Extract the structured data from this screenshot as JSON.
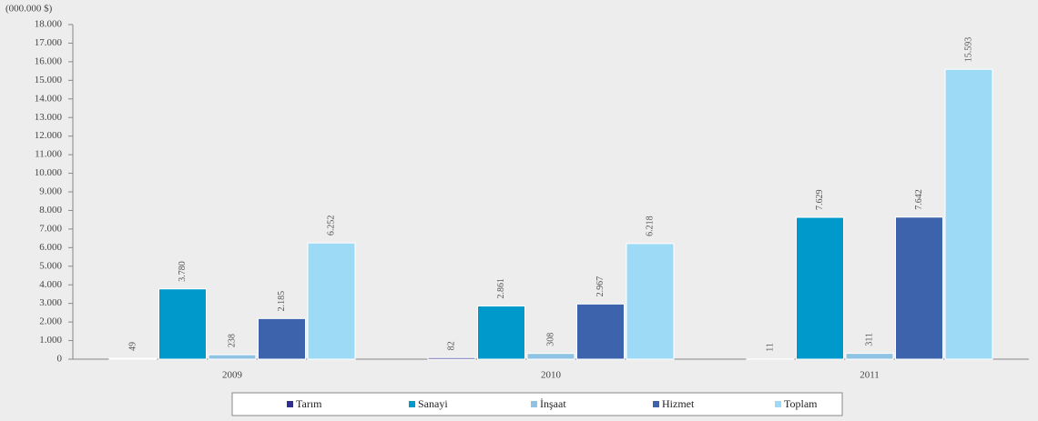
{
  "chart_data": {
    "type": "bar",
    "y_label": "(000.000 $)",
    "categories": [
      "2009",
      "2010",
      "2011"
    ],
    "series": [
      {
        "name": "Tarım",
        "color": "#2e3192",
        "values": [
          49,
          82,
          11
        ]
      },
      {
        "name": "Sanayi",
        "color": "#0099cc",
        "values": [
          3780,
          2861,
          7629
        ],
        "value_labels": [
          "3.780",
          "2.861",
          "7.629"
        ]
      },
      {
        "name": "İnşaat",
        "color": "#8fc3e3",
        "values": [
          238,
          308,
          311
        ]
      },
      {
        "name": "Hizmet",
        "color": "#3e63ad",
        "values": [
          2185,
          2967,
          7642
        ],
        "value_labels": [
          "2.185",
          "2.967",
          "7.642"
        ]
      },
      {
        "name": "Toplam",
        "color": "#9ddaf6",
        "values": [
          6252,
          6218,
          15593
        ],
        "value_labels": [
          "6.252",
          "6.218",
          "15.593"
        ]
      }
    ],
    "ylim": [
      0,
      18000
    ],
    "yticks": [
      0,
      {
        "value": 1000,
        "label": "1.000"
      },
      {
        "value": 2000,
        "label": "2.000"
      },
      {
        "value": 3000,
        "label": "3.000"
      },
      {
        "value": 4000,
        "label": "4.000"
      },
      {
        "value": 5000,
        "label": "5.000"
      },
      {
        "value": 6000,
        "label": "6.000"
      },
      {
        "value": 7000,
        "label": "7.000"
      },
      {
        "value": 8000,
        "label": "8.000"
      },
      {
        "value": 9000,
        "label": "9.000"
      },
      {
        "value": 10000,
        "label": "10.000"
      },
      {
        "value": 11000,
        "label": "11.000"
      },
      {
        "value": 12000,
        "label": "12.000"
      },
      {
        "value": 13000,
        "label": "13.000"
      },
      {
        "value": 14000,
        "label": "14.000"
      },
      {
        "value": 15000,
        "label": "15.000"
      },
      {
        "value": 16000,
        "label": "16.000"
      },
      {
        "value": 17000,
        "label": "17.000"
      },
      {
        "value": 18000,
        "label": "18.000"
      }
    ],
    "grid": false
  }
}
